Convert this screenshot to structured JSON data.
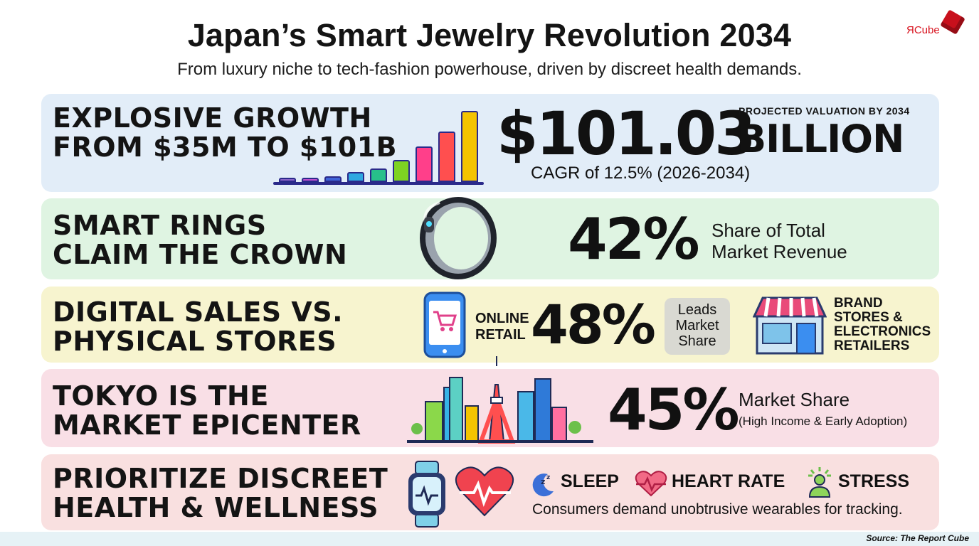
{
  "title": "Japan’s Smart Jewelry Revolution 2034",
  "subtitle": "From luxury niche to tech-fashion powerhouse, driven by discreet health demands.",
  "logo": {
    "text": "ЯCube",
    "icon": "cube-icon"
  },
  "growth": {
    "heading_line1": "EXPLOSIVE GROWTH",
    "heading_line2": "FROM $35M TO $101B",
    "value": "$101.03",
    "unit": "BILLION",
    "caption": "PROJECTED VALUATION BY 2034",
    "cagr": "CAGR of 12.5% (2026-2034)",
    "bars": [
      {
        "level": 0.06,
        "color": "#8a63c8"
      },
      {
        "level": 0.06,
        "color": "#c04fd0"
      },
      {
        "level": 0.08,
        "color": "#3f63d8"
      },
      {
        "level": 0.14,
        "color": "#2fa8e0"
      },
      {
        "level": 0.19,
        "color": "#27c08a"
      },
      {
        "level": 0.31,
        "color": "#7ed321"
      },
      {
        "level": 0.5,
        "color": "#ff3f8a"
      },
      {
        "level": 0.71,
        "color": "#ff4f4f"
      },
      {
        "level": 1.0,
        "color": "#f5c400"
      }
    ]
  },
  "rings": {
    "heading_line1": "SMART RINGS",
    "heading_line2": "CLAIM THE CROWN",
    "value": "42%",
    "label_line1": "Share of Total",
    "label_line2": "Market Revenue",
    "icon": "smart-ring-icon"
  },
  "sales": {
    "heading_line1": "DIGITAL SALES VS.",
    "heading_line2": "PHYSICAL STORES",
    "online_line1": "ONLINE",
    "online_line2": "RETAIL",
    "value": "48%",
    "callout_line1": "Leads",
    "callout_line2": "Market",
    "callout_line3": "Share",
    "stores_line1": "BRAND",
    "stores_line2": "STORES &",
    "stores_line3": "ELECTRONICS",
    "stores_line4": "RETAILERS",
    "phone_icon": "phone-cart-icon",
    "store_icon": "storefront-icon"
  },
  "tokyo": {
    "heading_line1": "TOKYO IS THE",
    "heading_line2": "MARKET EPICENTER",
    "value": "45%",
    "label": "Market Share",
    "sublabel": "(High Income & Early Adoption)",
    "icon": "tokyo-skyline-icon"
  },
  "health": {
    "heading_line1": "PRIORITIZE DISCREET",
    "heading_line2": "HEALTH & WELLNESS",
    "items": [
      {
        "label": "SLEEP",
        "icon": "sleep-moon-icon"
      },
      {
        "label": "HEART RATE",
        "icon": "heart-rate-icon"
      },
      {
        "label": "STRESS",
        "icon": "stress-person-icon"
      }
    ],
    "caption": "Consumers demand unobtrusive wearables for tracking.",
    "watch_icon": "smartwatch-icon",
    "heart_icon": "heart-pulse-icon"
  },
  "source": "Source: The Report Cube"
}
